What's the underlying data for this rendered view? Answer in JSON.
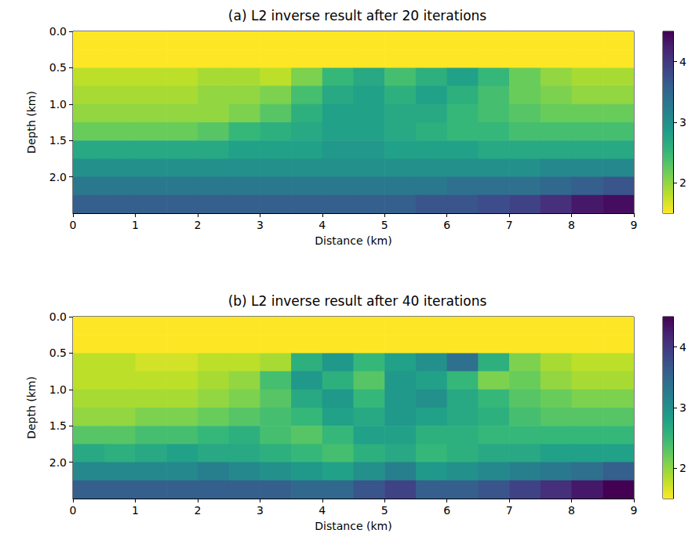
{
  "chart_data": [
    {
      "type": "heatmap",
      "title": "(a) L2 inverse result after 20 iterations",
      "xlabel": "Distance (km)",
      "ylabel": "Depth (km)",
      "xlim": [
        0,
        9
      ],
      "xticks": [
        0,
        1,
        2,
        3,
        4,
        5,
        6,
        7,
        8,
        9
      ],
      "ylim": [
        0,
        2.5
      ],
      "yticks": [
        {
          "value": 0,
          "label": "0.0"
        },
        {
          "value": 0.5,
          "label": "0.5"
        },
        {
          "value": 1,
          "label": "1.0"
        },
        {
          "value": 1.5,
          "label": "1.5"
        },
        {
          "value": 2,
          "label": "2.0"
        }
      ],
      "x_bins": [
        0,
        0.5,
        1,
        1.5,
        2,
        2.5,
        3,
        3.5,
        4,
        4.5,
        5,
        5.5,
        6,
        6.5,
        7,
        7.5,
        8,
        8.5,
        9
      ],
      "y_bins": [
        0,
        0.25,
        0.5,
        0.75,
        1,
        1.25,
        1.5,
        1.75,
        2,
        2.25,
        2.5
      ],
      "values": [
        [
          1.5,
          1.5,
          1.5,
          1.5,
          1.5,
          1.5,
          1.5,
          1.5,
          1.5,
          1.5,
          1.5,
          1.5,
          1.5,
          1.5,
          1.5,
          1.5,
          1.5,
          1.5
        ],
        [
          1.5,
          1.5,
          1.5,
          1.5,
          1.5,
          1.5,
          1.5,
          1.5,
          1.5,
          1.5,
          1.5,
          1.5,
          1.5,
          1.5,
          1.5,
          1.5,
          1.5,
          1.5
        ],
        [
          1.8,
          1.8,
          1.8,
          1.8,
          1.9,
          1.9,
          1.8,
          2.1,
          2.5,
          2.7,
          2.4,
          2.6,
          2.8,
          2.5,
          2.2,
          2.0,
          1.9,
          1.9
        ],
        [
          1.9,
          1.9,
          1.9,
          1.9,
          2.0,
          2.0,
          2.1,
          2.4,
          2.7,
          2.8,
          2.6,
          2.8,
          2.6,
          2.4,
          2.2,
          2.1,
          2.0,
          2.0
        ],
        [
          2.0,
          2.0,
          2.0,
          2.0,
          2.0,
          2.1,
          2.3,
          2.6,
          2.8,
          2.8,
          2.7,
          2.7,
          2.5,
          2.4,
          2.3,
          2.2,
          2.2,
          2.2
        ],
        [
          2.2,
          2.2,
          2.2,
          2.2,
          2.3,
          2.5,
          2.6,
          2.7,
          2.8,
          2.8,
          2.7,
          2.6,
          2.5,
          2.5,
          2.4,
          2.4,
          2.4,
          2.4
        ],
        [
          2.7,
          2.7,
          2.7,
          2.7,
          2.7,
          2.8,
          2.8,
          2.8,
          2.9,
          2.9,
          2.8,
          2.8,
          2.8,
          2.7,
          2.7,
          2.7,
          2.7,
          2.7
        ],
        [
          3.0,
          3.0,
          3.0,
          3.0,
          3.0,
          3.0,
          3.0,
          3.0,
          3.0,
          3.0,
          3.0,
          3.0,
          3.0,
          3.0,
          3.0,
          3.1,
          3.1,
          3.1
        ],
        [
          3.3,
          3.3,
          3.3,
          3.3,
          3.3,
          3.3,
          3.3,
          3.3,
          3.3,
          3.3,
          3.3,
          3.3,
          3.4,
          3.4,
          3.4,
          3.5,
          3.6,
          3.7
        ],
        [
          3.6,
          3.6,
          3.6,
          3.6,
          3.6,
          3.6,
          3.6,
          3.6,
          3.6,
          3.6,
          3.6,
          3.7,
          3.7,
          3.8,
          3.9,
          4.1,
          4.3,
          4.4
        ]
      ],
      "colorbar": {
        "range": [
          1.5,
          4.5
        ],
        "ticks": [
          2,
          3,
          4
        ]
      }
    },
    {
      "type": "heatmap",
      "title": "(b) L2 inverse result after 40 iterations",
      "xlabel": "Distance (km)",
      "ylabel": "Depth (km)",
      "xlim": [
        0,
        9
      ],
      "xticks": [
        0,
        1,
        2,
        3,
        4,
        5,
        6,
        7,
        8,
        9
      ],
      "ylim": [
        0,
        2.5
      ],
      "yticks": [
        {
          "value": 0,
          "label": "0.0"
        },
        {
          "value": 0.5,
          "label": "0.5"
        },
        {
          "value": 1,
          "label": "1.0"
        },
        {
          "value": 1.5,
          "label": "1.5"
        },
        {
          "value": 2,
          "label": "2.0"
        }
      ],
      "x_bins": [
        0,
        0.5,
        1,
        1.5,
        2,
        2.5,
        3,
        3.5,
        4,
        4.5,
        5,
        5.5,
        6,
        6.5,
        7,
        7.5,
        8,
        8.5,
        9
      ],
      "y_bins": [
        0,
        0.25,
        0.5,
        0.75,
        1,
        1.25,
        1.5,
        1.75,
        2,
        2.25,
        2.5
      ],
      "values": [
        [
          1.5,
          1.5,
          1.5,
          1.5,
          1.5,
          1.5,
          1.5,
          1.5,
          1.5,
          1.5,
          1.5,
          1.5,
          1.5,
          1.5,
          1.5,
          1.5,
          1.5,
          1.5
        ],
        [
          1.5,
          1.5,
          1.5,
          1.5,
          1.5,
          1.5,
          1.5,
          1.5,
          1.5,
          1.5,
          1.5,
          1.5,
          1.5,
          1.5,
          1.5,
          1.5,
          1.5,
          1.5
        ],
        [
          1.8,
          1.8,
          1.7,
          1.7,
          1.8,
          1.8,
          1.9,
          2.6,
          2.9,
          2.5,
          2.8,
          3.0,
          3.4,
          2.6,
          2.1,
          1.9,
          1.8,
          1.8
        ],
        [
          1.8,
          1.8,
          1.8,
          1.8,
          1.9,
          2.0,
          2.4,
          2.9,
          2.6,
          2.3,
          2.9,
          2.8,
          2.5,
          2.1,
          2.2,
          2.0,
          1.9,
          1.9
        ],
        [
          1.9,
          1.9,
          1.9,
          1.9,
          2.0,
          2.1,
          2.3,
          2.7,
          2.9,
          2.5,
          2.9,
          3.0,
          2.7,
          2.5,
          2.3,
          2.2,
          2.1,
          2.1
        ],
        [
          2.0,
          2.0,
          2.1,
          2.1,
          2.2,
          2.3,
          2.4,
          2.5,
          2.8,
          2.7,
          2.9,
          2.8,
          2.7,
          2.6,
          2.4,
          2.3,
          2.3,
          2.3
        ],
        [
          2.3,
          2.3,
          2.4,
          2.4,
          2.5,
          2.6,
          2.4,
          2.3,
          2.5,
          2.8,
          2.8,
          2.6,
          2.6,
          2.5,
          2.5,
          2.5,
          2.5,
          2.5
        ],
        [
          2.7,
          2.6,
          2.7,
          2.8,
          2.7,
          2.7,
          2.6,
          2.5,
          2.4,
          2.6,
          2.7,
          2.5,
          2.6,
          2.7,
          2.7,
          2.8,
          2.8,
          2.8
        ],
        [
          3.1,
          3.1,
          3.1,
          3.1,
          3.2,
          3.1,
          3.0,
          2.9,
          2.8,
          3.0,
          3.2,
          2.9,
          3.0,
          3.1,
          3.2,
          3.3,
          3.4,
          3.6
        ],
        [
          3.6,
          3.6,
          3.6,
          3.6,
          3.6,
          3.6,
          3.6,
          3.5,
          3.5,
          3.7,
          3.9,
          3.6,
          3.6,
          3.7,
          3.9,
          4.1,
          4.3,
          4.5
        ]
      ],
      "colorbar": {
        "range": [
          1.5,
          4.5
        ],
        "ticks": [
          2,
          3,
          4
        ]
      }
    }
  ]
}
